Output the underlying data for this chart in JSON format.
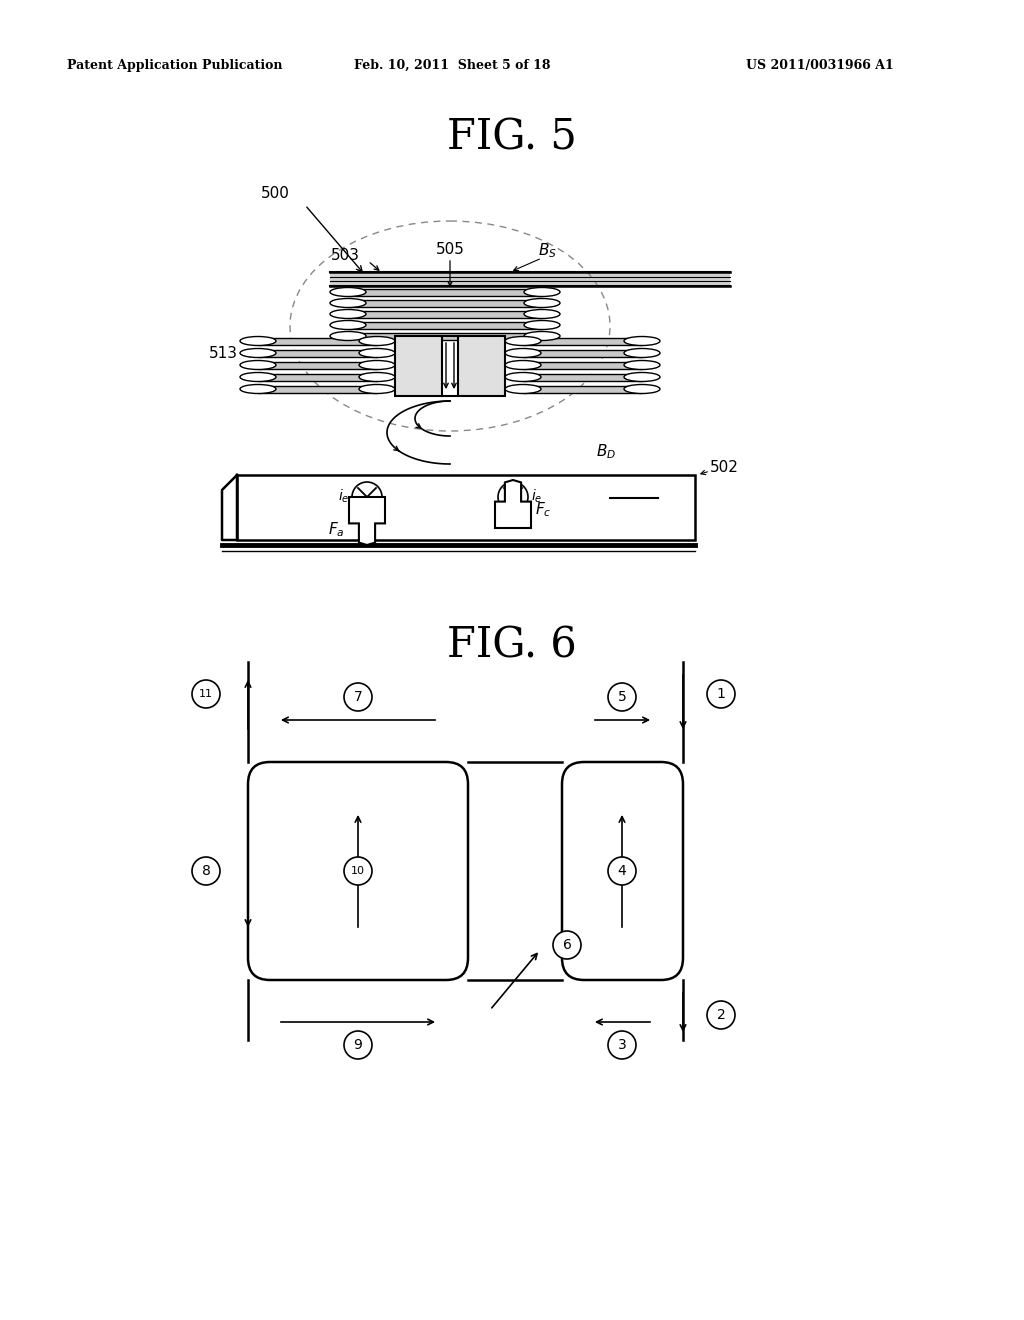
{
  "bg_color": "#ffffff",
  "header_left": "Patent Application Publication",
  "header_mid": "Feb. 10, 2011  Sheet 5 of 18",
  "header_right": "US 2011/0031966 A1",
  "fig5_title": "FIG. 5",
  "fig6_title": "FIG. 6"
}
